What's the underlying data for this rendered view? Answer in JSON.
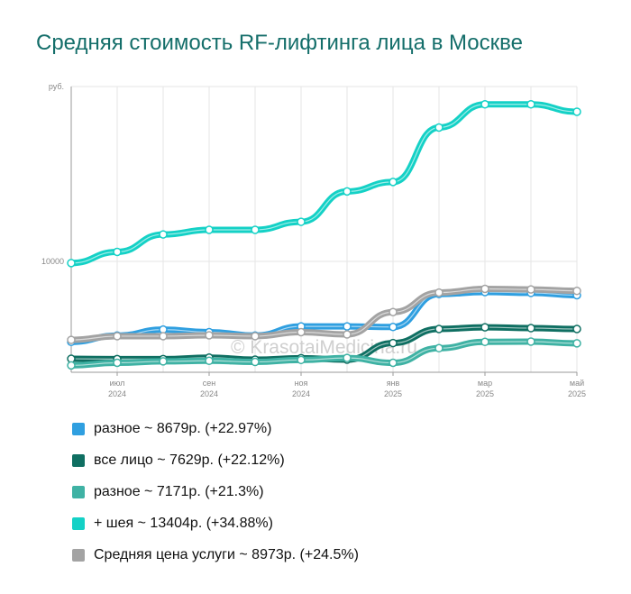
{
  "title": "Средняя стоимость RF-лифтинга лица в Москве",
  "watermark": "© KrasotaiMedicina.ru",
  "chart_data": {
    "type": "line",
    "title": "Средняя стоимость RF-лифтинга лица в Москве",
    "y_unit": "руб.",
    "ylim": [
      6130,
      16100
    ],
    "yticks": [
      {
        "value": 10000,
        "label": "10000"
      }
    ],
    "grid": true,
    "x_ticks": [
      {
        "i": 1,
        "line1": "июл",
        "line2": "2024"
      },
      {
        "i": 3,
        "line1": "сен",
        "line2": "2024"
      },
      {
        "i": 5,
        "line1": "ноя",
        "line2": "2024"
      },
      {
        "i": 7,
        "line1": "янв",
        "line2": "2025"
      },
      {
        "i": 9,
        "line1": "мар",
        "line2": "2025"
      },
      {
        "i": 11,
        "line1": "май",
        "line2": "2025"
      }
    ],
    "n_points": 12,
    "legend_placement": "bottom",
    "series": [
      {
        "name": "разное ~ 8679р. (+22.97%)",
        "color": "#2f9fe0",
        "values": [
          7190,
          7410,
          7620,
          7530,
          7410,
          7730,
          7730,
          7710,
          8860,
          8930,
          8900,
          8820
        ]
      },
      {
        "name": "все лицо ~ 7629р. (+22.12%)",
        "color": "#0f6f62",
        "values": [
          6600,
          6590,
          6590,
          6640,
          6570,
          6620,
          6570,
          7150,
          7640,
          7700,
          7670,
          7640
        ]
      },
      {
        "name": "разное ~ 7171р. (+21.3%)",
        "color": "#3fb2a4",
        "values": [
          6370,
          6460,
          6510,
          6530,
          6490,
          6560,
          6630,
          6460,
          6970,
          7190,
          7200,
          7140
        ]
      },
      {
        "name": "+ шея ~ 13404р. (+34.88%)",
        "color": "#14d1c6",
        "values": [
          9940,
          10330,
          10940,
          11100,
          11100,
          11380,
          12440,
          12770,
          14670,
          15480,
          15480,
          15220
        ]
      },
      {
        "name": "Средняя цена услуги ~ 8973р. (+24.5%)",
        "color": "#a3a3a3",
        "values": [
          7260,
          7390,
          7390,
          7420,
          7390,
          7530,
          7450,
          8230,
          8910,
          9040,
          9020,
          8970
        ]
      }
    ]
  }
}
